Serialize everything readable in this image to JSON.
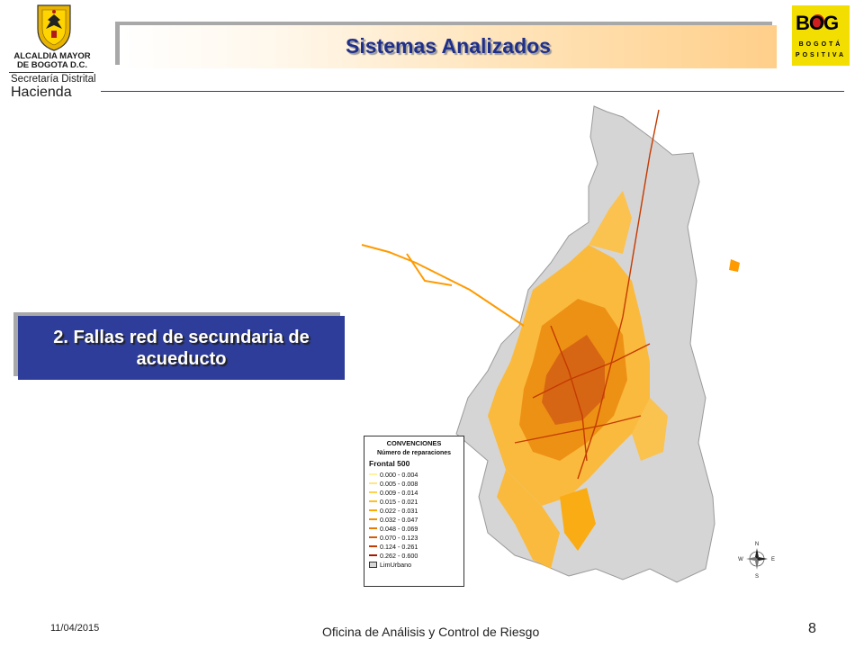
{
  "header": {
    "crest_line1": "ALCALDIA MAYOR",
    "crest_line2": "DE BOGOTA D.C.",
    "crest_line3": "Secretaría Distrital",
    "crest_line4": "Hacienda",
    "title": "Sistemas Analizados",
    "bog_word": "BOG",
    "bog_sub1": "BOGOTÁ",
    "bog_sub2": "POSITIVA"
  },
  "label_box": {
    "line1": "2. Fallas red de secundaria de",
    "line2": "acueducto"
  },
  "legend": {
    "title": "CONVENCIONES",
    "subtitle": "Número de reparaciones",
    "field": "Frontal 500",
    "classes": [
      {
        "range": "0.000 - 0.004",
        "color": "#fff2a0"
      },
      {
        "range": "0.005 - 0.008",
        "color": "#ffe680"
      },
      {
        "range": "0.009 - 0.014",
        "color": "#ffd24d"
      },
      {
        "range": "0.015 - 0.021",
        "color": "#ffbf26"
      },
      {
        "range": "0.022 - 0.031",
        "color": "#ffa800"
      },
      {
        "range": "0.032 - 0.047",
        "color": "#f59000"
      },
      {
        "range": "0.048 - 0.069",
        "color": "#e87a00"
      },
      {
        "range": "0.070 - 0.123",
        "color": "#d85a00"
      },
      {
        "range": "0.124 - 0.261",
        "color": "#c43a00"
      },
      {
        "range": "0.262 - 0.600",
        "color": "#a81800"
      }
    ],
    "boundary_label": "LimUrbano"
  },
  "compass": {
    "n": "N",
    "s": "S",
    "e": "E",
    "w": "W"
  },
  "footer": {
    "date": "11/04/2015",
    "office": "Oficina  de Análisis y Control de Riesgo",
    "page": "8"
  }
}
